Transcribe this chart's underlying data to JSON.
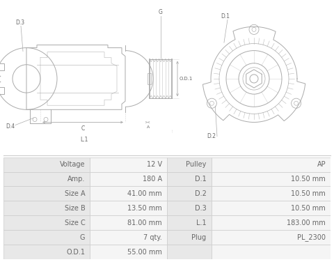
{
  "table_rows": [
    [
      "Voltage",
      "12 V",
      "Pulley",
      "AP"
    ],
    [
      "Amp.",
      "180 A",
      "D.1",
      "10.50 mm"
    ],
    [
      "Size A",
      "41.00 mm",
      "D.2",
      "10.50 mm"
    ],
    [
      "Size B",
      "13.50 mm",
      "D.3",
      "10.50 mm"
    ],
    [
      "Size C",
      "81.00 mm",
      "L.1",
      "183.00 mm"
    ],
    [
      "G",
      "7 qty.",
      "Plug",
      "PL_2300"
    ],
    [
      "O.D.1",
      "55.00 mm",
      "",
      ""
    ]
  ],
  "bg_color_label": "#e8e8e8",
  "bg_color_value": "#f5f5f5",
  "text_color": "#666666",
  "border_color": "#cccccc",
  "font_size": 7.0,
  "background": "#ffffff",
  "line_color": "#aaaaaa",
  "lw": 0.7
}
